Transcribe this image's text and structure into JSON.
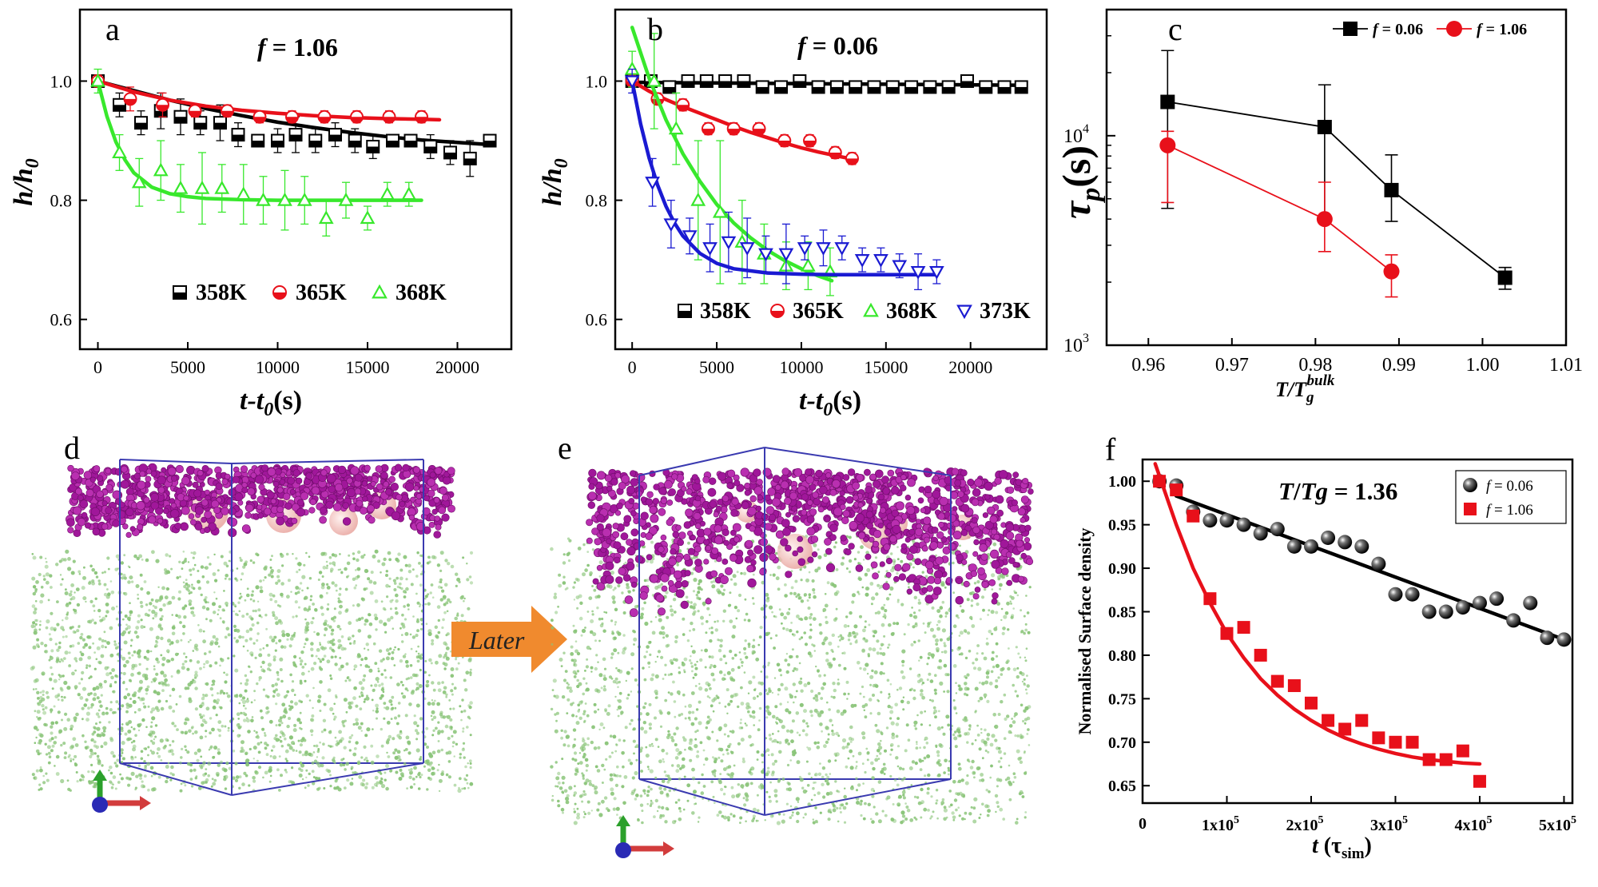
{
  "panels": {
    "a": {
      "letter": "a",
      "title_prefix": "f",
      "title_value": " = 1.06"
    },
    "b": {
      "letter": "b",
      "title_prefix": "f",
      "title_value": " = 0.06"
    },
    "c": {
      "letter": "c"
    },
    "d": {
      "letter": "d"
    },
    "e": {
      "letter": "e",
      "arrow_label": "Later"
    },
    "f": {
      "letter": "f",
      "annotation_T": "T",
      "annotation_slash": "/",
      "annotation_Tg": "Tg",
      "annotation_value": " = 1.36"
    }
  },
  "colors": {
    "black": "#000000",
    "red": "#e8101a",
    "green": "#38e82c",
    "blue": "#1a1ad2",
    "purple": "#a0179a",
    "sim_green": "#8bc57a",
    "box_blue": "#3a3ab0",
    "arrow_orange": "#f08a2e"
  },
  "chart_data": [
    {
      "type": "scatter",
      "panel": "a",
      "xlabel_main": "t-t",
      "xlabel_sub": "0",
      "xlabel_unit": "(s)",
      "ylabel_main": "h/h",
      "ylabel_sub": "0",
      "xlim": [
        -1000,
        23000
      ],
      "ylim": [
        0.55,
        1.12
      ],
      "xticks": [
        0,
        5000,
        10000,
        15000,
        20000
      ],
      "yticks": [
        0.6,
        0.8,
        1.0
      ],
      "ytick_labels": [
        "0.6",
        "0.8",
        "1.0"
      ],
      "legend_position": "bottom",
      "series": [
        {
          "name": "358K",
          "color": "#000000",
          "marker": "square",
          "x": [
            0,
            1200,
            2400,
            3500,
            4600,
            5700,
            6800,
            7800,
            8900,
            10000,
            11000,
            12100,
            13200,
            14300,
            15300,
            16400,
            17400,
            18500,
            19600,
            20700,
            21800
          ],
          "y": [
            1.0,
            0.96,
            0.93,
            0.95,
            0.94,
            0.93,
            0.93,
            0.91,
            0.9,
            0.9,
            0.91,
            0.9,
            0.91,
            0.9,
            0.89,
            0.9,
            0.9,
            0.89,
            0.88,
            0.87,
            0.9
          ],
          "err": [
            0.01,
            0.02,
            0.02,
            0.03,
            0.03,
            0.02,
            0.03,
            0.02,
            0.01,
            0.02,
            0.03,
            0.02,
            0.02,
            0.02,
            0.02,
            0.01,
            0.01,
            0.02,
            0.02,
            0.03,
            0.01
          ],
          "fit_x": [
            0,
            2000,
            4000,
            6000,
            8000,
            10000,
            12000,
            14000,
            16000,
            18000,
            20000,
            22000
          ],
          "fit_y": [
            1.0,
            0.984,
            0.968,
            0.954,
            0.942,
            0.931,
            0.922,
            0.914,
            0.907,
            0.901,
            0.897,
            0.893
          ]
        },
        {
          "name": "365K",
          "color": "#e8101a",
          "marker": "circle",
          "x": [
            0,
            1800,
            3600,
            5400,
            7200,
            9000,
            10800,
            12600,
            14400,
            16200,
            18000
          ],
          "y": [
            1.0,
            0.97,
            0.96,
            0.95,
            0.95,
            0.94,
            0.94,
            0.94,
            0.94,
            0.94,
            0.94
          ],
          "err": [
            0.01,
            0.02,
            0.02,
            0.01,
            0.01,
            0.01,
            0.01,
            0.01,
            0.01,
            0.01,
            0.01
          ],
          "fit_x": [
            0,
            2000,
            4000,
            6000,
            8000,
            10000,
            12000,
            14000,
            16000,
            18000,
            19000
          ],
          "fit_y": [
            1.0,
            0.982,
            0.968,
            0.958,
            0.951,
            0.946,
            0.942,
            0.939,
            0.937,
            0.936,
            0.935
          ]
        },
        {
          "name": "368K",
          "color": "#38e82c",
          "marker": "triangle-up",
          "x": [
            0,
            1200,
            2300,
            3500,
            4600,
            5800,
            6900,
            8100,
            9200,
            10400,
            11500,
            12700,
            13800,
            15000,
            16100,
            17300
          ],
          "y": [
            1.0,
            0.88,
            0.83,
            0.85,
            0.82,
            0.82,
            0.82,
            0.81,
            0.8,
            0.8,
            0.8,
            0.77,
            0.8,
            0.77,
            0.81,
            0.81
          ],
          "err": [
            0.02,
            0.03,
            0.04,
            0.05,
            0.04,
            0.06,
            0.04,
            0.05,
            0.04,
            0.05,
            0.04,
            0.03,
            0.03,
            0.02,
            0.02,
            0.02
          ],
          "fit_x": [
            0,
            500,
            1000,
            1500,
            2000,
            3000,
            4000,
            5000,
            6000,
            8000,
            10000,
            12000,
            14000,
            16000,
            18000
          ],
          "fit_y": [
            1.0,
            0.941,
            0.898,
            0.868,
            0.846,
            0.822,
            0.811,
            0.806,
            0.803,
            0.801,
            0.8,
            0.8,
            0.8,
            0.8,
            0.8
          ]
        }
      ]
    },
    {
      "type": "scatter",
      "panel": "b",
      "xlabel_main": "t-t",
      "xlabel_sub": "0",
      "xlabel_unit": "(s)",
      "ylabel_main": "h/h",
      "ylabel_sub": "0",
      "xlim": [
        -1000,
        24500
      ],
      "ylim": [
        0.55,
        1.12
      ],
      "xticks": [
        0,
        5000,
        10000,
        15000,
        20000
      ],
      "yticks": [
        0.6,
        0.8,
        1.0
      ],
      "ytick_labels": [
        "0.6",
        "0.8",
        "1.0"
      ],
      "legend_position": "bottom",
      "series": [
        {
          "name": "358K",
          "color": "#000000",
          "marker": "square",
          "x": [
            0,
            1100,
            2200,
            3300,
            4400,
            5500,
            6600,
            7700,
            8800,
            9900,
            11000,
            12100,
            13200,
            14300,
            15400,
            16500,
            17600,
            18700,
            19800,
            20900,
            22000,
            23000
          ],
          "y": [
            1.0,
            1.0,
            0.99,
            1.0,
            1.0,
            1.0,
            1.0,
            0.99,
            0.99,
            1.0,
            0.99,
            0.99,
            0.99,
            0.99,
            0.99,
            0.99,
            0.99,
            0.99,
            1.0,
            0.99,
            0.99,
            0.99
          ],
          "err": [
            0.005,
            0.005,
            0.01,
            0.005,
            0.005,
            0.005,
            0.005,
            0.01,
            0.005,
            0.005,
            0.005,
            0.005,
            0.005,
            0.005,
            0.005,
            0.005,
            0.005,
            0.005,
            0.005,
            0.005,
            0.005,
            0.005
          ],
          "fit_x": [
            0,
            23000
          ],
          "fit_y": [
            0.998,
            0.993
          ]
        },
        {
          "name": "365K",
          "color": "#e8101a",
          "marker": "circle",
          "x": [
            0,
            1500,
            3000,
            4500,
            6000,
            7500,
            9000,
            10500,
            12000,
            13000
          ],
          "y": [
            1.0,
            0.97,
            0.96,
            0.92,
            0.92,
            0.92,
            0.9,
            0.9,
            0.88,
            0.87
          ],
          "err": [
            0.01,
            0.01,
            0.01,
            0.01,
            0.01,
            0.01,
            0.01,
            0.01,
            0.01,
            0.01
          ],
          "fit_x": [
            0,
            1000,
            2000,
            3000,
            4000,
            5000,
            6000,
            7000,
            8000,
            9000,
            10000,
            11000,
            12000,
            13000
          ],
          "fit_y": [
            1.0,
            0.983,
            0.969,
            0.957,
            0.946,
            0.935,
            0.924,
            0.914,
            0.905,
            0.896,
            0.888,
            0.881,
            0.875,
            0.869
          ]
        },
        {
          "name": "368K",
          "color": "#38e82c",
          "marker": "triangle-up",
          "x": [
            0,
            1300,
            2600,
            3900,
            5200,
            6500,
            7800,
            9100,
            10400,
            11700
          ],
          "y": [
            1.02,
            1.0,
            0.92,
            0.8,
            0.78,
            0.73,
            0.71,
            0.69,
            0.69,
            0.68
          ],
          "err": [
            0.03,
            0.08,
            0.06,
            0.1,
            0.12,
            0.07,
            0.05,
            0.04,
            0.04,
            0.04
          ],
          "fit_x": [
            0,
            1000,
            2000,
            3000,
            4000,
            5000,
            6000,
            7000,
            8000,
            9000,
            10000,
            11000,
            11800
          ],
          "fit_y": [
            1.09,
            1.005,
            0.935,
            0.878,
            0.832,
            0.793,
            0.762,
            0.737,
            0.716,
            0.699,
            0.685,
            0.673,
            0.665
          ]
        },
        {
          "name": "373K",
          "color": "#1a1ad2",
          "marker": "triangle-down",
          "x": [
            0,
            1200,
            2300,
            3400,
            4600,
            5700,
            6800,
            7900,
            9100,
            10200,
            11300,
            12400,
            13600,
            14700,
            15800,
            16900,
            18000
          ],
          "y": [
            1.0,
            0.83,
            0.76,
            0.74,
            0.72,
            0.73,
            0.72,
            0.71,
            0.71,
            0.72,
            0.72,
            0.72,
            0.7,
            0.7,
            0.69,
            0.68,
            0.68
          ],
          "err": [
            0.02,
            0.04,
            0.04,
            0.03,
            0.04,
            0.05,
            0.05,
            0.03,
            0.05,
            0.02,
            0.03,
            0.02,
            0.02,
            0.02,
            0.02,
            0.03,
            0.02
          ],
          "fit_x": [
            0,
            500,
            1000,
            1500,
            2000,
            2500,
            3000,
            4000,
            5000,
            6000,
            8000,
            10000,
            12000,
            14000,
            16000,
            18000
          ],
          "fit_y": [
            1.0,
            0.928,
            0.871,
            0.826,
            0.79,
            0.762,
            0.74,
            0.711,
            0.694,
            0.685,
            0.678,
            0.676,
            0.675,
            0.675,
            0.675,
            0.675
          ]
        }
      ]
    },
    {
      "type": "line",
      "panel": "c",
      "xlabel_main": "T/T",
      "xlabel_sub": "g",
      "xlabel_sup": "bulk",
      "ylabel_main": "τ",
      "ylabel_sub": "p",
      "ylabel_unit": "(s)",
      "yscale": "log",
      "xlim": [
        0.955,
        1.01
      ],
      "ylim": [
        1000,
        40000
      ],
      "xticks": [
        0.96,
        0.97,
        0.98,
        0.99,
        1.0,
        1.01
      ],
      "xtick_labels": [
        "0.96",
        "0.97",
        "0.98",
        "0.99",
        "1.00",
        "1.01"
      ],
      "yticks": [
        1000,
        10000
      ],
      "ytick_mantissa": "10",
      "ytick_exponents": [
        "3",
        "4"
      ],
      "legend_position": "top-right",
      "legend_label_prefix": "f",
      "series": [
        {
          "name": " = 0.06",
          "color": "#000000",
          "marker": "square",
          "x": [
            0.9623,
            0.9811,
            0.9891,
            1.0027
          ],
          "y": [
            14500,
            11000,
            5500,
            2100
          ],
          "err_low": [
            4500,
            4000,
            3900,
            1850
          ],
          "err_high": [
            25500,
            17500,
            8100,
            2350
          ]
        },
        {
          "name": " = 1.06",
          "color": "#e8101a",
          "marker": "circle",
          "x": [
            0.9623,
            0.9811,
            0.9891
          ],
          "y": [
            9000,
            4000,
            2250
          ],
          "err_low": [
            4800,
            2800,
            1700
          ],
          "err_high": [
            10500,
            6000,
            2700
          ]
        }
      ]
    },
    {
      "type": "scatter",
      "panel": "f",
      "xlabel_main": "t",
      "xlabel_unit": " (τ",
      "xlabel_sub": "sim",
      "xlabel_close": ")",
      "ylabel": "Normalised Surface density",
      "xlim": [
        0,
        510000
      ],
      "ylim": [
        0.63,
        1.025
      ],
      "xticks": [
        0,
        100000,
        200000,
        300000,
        400000,
        500000
      ],
      "xtick_labels": [
        "0",
        "1x10",
        "2x10",
        "3x10",
        "4x10",
        "5x10"
      ],
      "xtick_exp": "5",
      "yticks": [
        0.65,
        0.7,
        0.75,
        0.8,
        0.85,
        0.9,
        0.95,
        1.0
      ],
      "ytick_labels": [
        "0.65",
        "0.70",
        "0.75",
        "0.80",
        "0.85",
        "0.90",
        "0.95",
        "1.00"
      ],
      "legend_position": "top-right",
      "legend_label_prefix": "f",
      "series": [
        {
          "name": " = 0.06",
          "color": "#000000",
          "marker": "sphere",
          "x": [
            20000,
            40000,
            60000,
            80000,
            100000,
            120000,
            140000,
            160000,
            180000,
            200000,
            220000,
            240000,
            260000,
            280000,
            300000,
            320000,
            340000,
            360000,
            380000,
            400000,
            420000,
            440000,
            460000,
            480000,
            500000
          ],
          "y": [
            1.0,
            0.995,
            0.965,
            0.955,
            0.955,
            0.95,
            0.94,
            0.945,
            0.925,
            0.925,
            0.935,
            0.93,
            0.925,
            0.905,
            0.87,
            0.87,
            0.85,
            0.85,
            0.855,
            0.86,
            0.865,
            0.84,
            0.86,
            0.82,
            0.818
          ],
          "fit_x": [
            40000,
            500000
          ],
          "fit_y": [
            0.983,
            0.818
          ]
        },
        {
          "name": " = 1.06",
          "color": "#e8101a",
          "marker": "square",
          "x": [
            20000,
            40000,
            60000,
            80000,
            100000,
            120000,
            140000,
            160000,
            180000,
            200000,
            220000,
            240000,
            260000,
            280000,
            300000,
            320000,
            340000,
            360000,
            380000,
            400000
          ],
          "y": [
            1.0,
            0.99,
            0.96,
            0.865,
            0.825,
            0.832,
            0.8,
            0.77,
            0.765,
            0.745,
            0.725,
            0.715,
            0.725,
            0.705,
            0.7,
            0.7,
            0.68,
            0.68,
            0.69,
            0.655
          ],
          "fit_x": [
            15000,
            40000,
            60000,
            80000,
            100000,
            120000,
            140000,
            160000,
            180000,
            200000,
            220000,
            240000,
            260000,
            280000,
            300000,
            320000,
            340000,
            360000,
            380000,
            400000
          ],
          "fit_y": [
            1.02,
            0.95,
            0.9,
            0.86,
            0.825,
            0.797,
            0.773,
            0.754,
            0.738,
            0.725,
            0.714,
            0.705,
            0.698,
            0.692,
            0.687,
            0.683,
            0.68,
            0.678,
            0.676,
            0.675
          ]
        }
      ]
    }
  ]
}
